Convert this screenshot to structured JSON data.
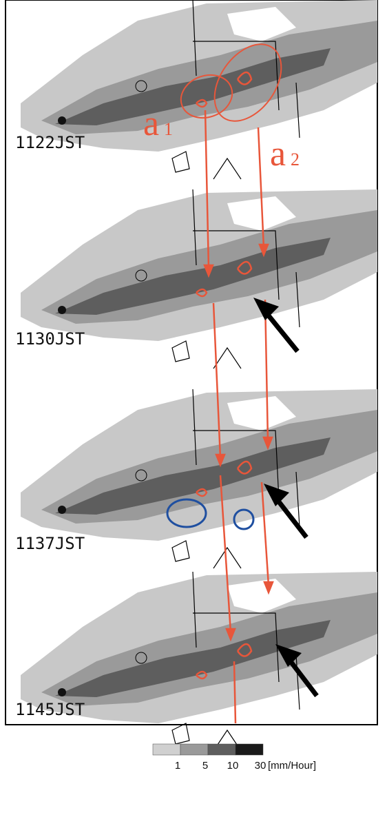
{
  "panels": [
    {
      "time": "1122JST"
    },
    {
      "time": "1130JST"
    },
    {
      "time": "1137JST"
    },
    {
      "time": "1145JST"
    }
  ],
  "annotations": [
    {
      "letter": "a",
      "sub": "1"
    },
    {
      "letter": "a",
      "sub": "2"
    }
  ],
  "legend": {
    "ticks": [
      "1",
      "5",
      "10",
      "30"
    ],
    "unit": "[mm/Hour]"
  }
}
